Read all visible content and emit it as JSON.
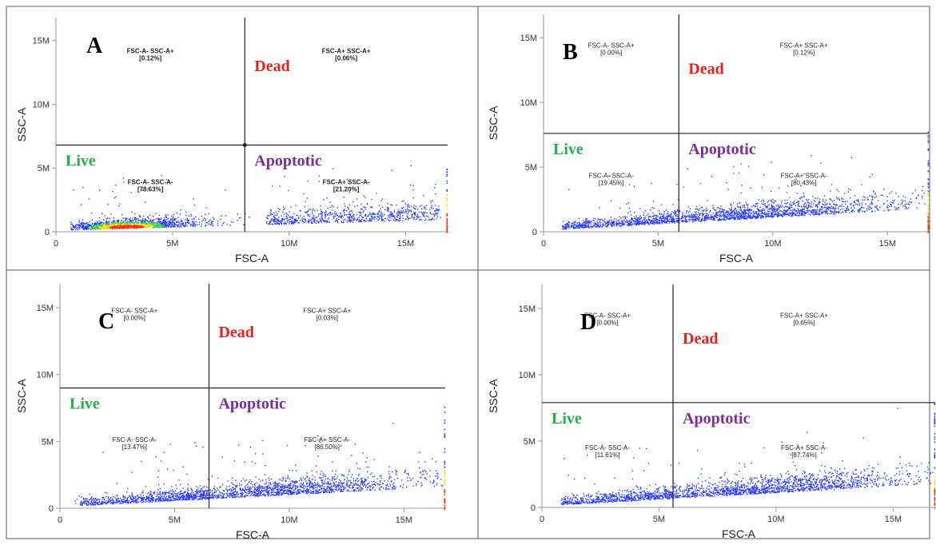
{
  "colors": {
    "live": "#22b04b",
    "dead": "#e8201a",
    "apoptotic": "#7b2d9e",
    "dot_low": "#2a3cff",
    "dot_mid": "#2ecc40",
    "dot_high": "#ffdd00",
    "dot_max": "#ff2a00"
  },
  "chart_data": [
    {
      "type": "scatter",
      "panel": "A",
      "xlabel": "FSC-A",
      "ylabel": "SSC-A",
      "xlim": [
        0,
        16.8
      ],
      "ylim": [
        0,
        16.8
      ],
      "x_unit": "M",
      "x_ticks": [
        {
          "value": 0,
          "label": "0"
        },
        {
          "value": 5,
          "label": "5M"
        },
        {
          "value": 10,
          "label": "10M"
        },
        {
          "value": 15,
          "label": "15M"
        }
      ],
      "y_ticks": [
        {
          "value": 0,
          "label": "0"
        },
        {
          "value": 5,
          "label": "5M"
        },
        {
          "value": 10,
          "label": "10M"
        },
        {
          "value": 15,
          "label": "15M"
        }
      ],
      "gate": {
        "x": 8.1,
        "y": 6.8
      },
      "quadrants": [
        {
          "position": "top-left",
          "label": "FSC-A- SSC-A+",
          "percent": "[0.12%]"
        },
        {
          "position": "top-right",
          "label": "FSC-A+ SSC-A+",
          "percent": "[0.06%]"
        },
        {
          "position": "bottom-left",
          "label": "FSC-A- SSC-A-",
          "percent": "[78.63%]"
        },
        {
          "position": "bottom-right",
          "label": "FSC-A+ SSC-A-",
          "percent": "[21.20%]"
        }
      ],
      "bold_quadrant_labels": true,
      "regions": {
        "live": "Live",
        "dead": "Dead",
        "apoptotic": "Apoptotic"
      },
      "density_center_x": 3.0,
      "density_center_y": 0.4,
      "slope": 0.05
    },
    {
      "type": "scatter",
      "panel": "B",
      "xlabel": "FSC-A",
      "ylabel": "SSC-A",
      "xlim": [
        0,
        16.8
      ],
      "ylim": [
        0,
        16.8
      ],
      "x_unit": "M",
      "x_ticks": [
        {
          "value": 0,
          "label": "0"
        },
        {
          "value": 5,
          "label": "5M"
        },
        {
          "value": 10,
          "label": "10M"
        },
        {
          "value": 15,
          "label": "15M"
        }
      ],
      "y_ticks": [
        {
          "value": 0,
          "label": "0"
        },
        {
          "value": 5,
          "label": "5M"
        },
        {
          "value": 10,
          "label": "10M"
        },
        {
          "value": 15,
          "label": "15M"
        }
      ],
      "gate": {
        "x": 5.9,
        "y": 7.6
      },
      "quadrants": [
        {
          "position": "top-left",
          "label": "FSC-A- SSC-A+",
          "percent": "[0.00%]"
        },
        {
          "position": "top-right",
          "label": "FSC-A+ SSC-A+",
          "percent": "[0.12%]"
        },
        {
          "position": "bottom-left",
          "label": "FSC-A- SSC-A-",
          "percent": "[19.45%]"
        },
        {
          "position": "bottom-right",
          "label": "FSC-A+ SSC-A-",
          "percent": "[80.43%]"
        }
      ],
      "bold_quadrant_labels": false,
      "regions": {
        "live": "Live",
        "dead": "Dead",
        "apoptotic": "Apoptotic"
      },
      "density_center_x": 9.5,
      "density_center_y": 0.6,
      "slope": 0.1
    },
    {
      "type": "scatter",
      "panel": "C",
      "xlabel": "FSC-A",
      "ylabel": "SSC-A",
      "xlim": [
        0,
        16.8
      ],
      "ylim": [
        0,
        16.8
      ],
      "x_unit": "M",
      "x_ticks": [
        {
          "value": 0,
          "label": "0"
        },
        {
          "value": 5,
          "label": "5M"
        },
        {
          "value": 10,
          "label": "10M"
        },
        {
          "value": 15,
          "label": "15M"
        }
      ],
      "y_ticks": [
        {
          "value": 0,
          "label": "0"
        },
        {
          "value": 5,
          "label": "5M"
        },
        {
          "value": 10,
          "label": "10M"
        },
        {
          "value": 15,
          "label": "15M"
        }
      ],
      "gate": {
        "x": 6.5,
        "y": 9.0
      },
      "quadrants": [
        {
          "position": "top-left",
          "label": "FSC-A- SSC-A+",
          "percent": "[0.00%]"
        },
        {
          "position": "top-right",
          "label": "FSC-A+ SSC-A+",
          "percent": "[0.03%]"
        },
        {
          "position": "bottom-left",
          "label": "FSC-A- SSC-A-",
          "percent": "[13.47%]"
        },
        {
          "position": "bottom-right",
          "label": "FSC-A+ SSC-A-",
          "percent": "[86.50%]"
        }
      ],
      "bold_quadrant_labels": false,
      "regions": {
        "live": "Live",
        "dead": "Dead",
        "apoptotic": "Apoptotic"
      },
      "density_center_x": 9.8,
      "density_center_y": 0.6,
      "slope": 0.09
    },
    {
      "type": "scatter",
      "panel": "D",
      "xlabel": "FSC-A",
      "ylabel": "SSC-A",
      "xlim": [
        0,
        16.8
      ],
      "ylim": [
        0,
        16.8
      ],
      "x_unit": "M",
      "x_ticks": [
        {
          "value": 0,
          "label": "0"
        },
        {
          "value": 5,
          "label": "5M"
        },
        {
          "value": 10,
          "label": "10M"
        },
        {
          "value": 15,
          "label": "15M"
        }
      ],
      "y_ticks": [
        {
          "value": 0,
          "label": "0"
        },
        {
          "value": 5,
          "label": "5M"
        },
        {
          "value": 10,
          "label": "10M"
        },
        {
          "value": 15,
          "label": "15M"
        }
      ],
      "gate": {
        "x": 5.6,
        "y": 7.9
      },
      "quadrants": [
        {
          "position": "top-left",
          "label": "FSC-A- SSC-A+",
          "percent": "[0.00%]"
        },
        {
          "position": "top-right",
          "label": "FSC-A+ SSC-A+",
          "percent": "[0.65%]"
        },
        {
          "position": "bottom-left",
          "label": "FSC-A- SSC-A-",
          "percent": "[11.61%]"
        },
        {
          "position": "bottom-right",
          "label": "FSC-A+ SSC-A-",
          "percent": "[87.74%]"
        }
      ],
      "bold_quadrant_labels": false,
      "regions": {
        "live": "Live",
        "dead": "Dead",
        "apoptotic": "Apoptotic"
      },
      "density_center_x": 10.0,
      "density_center_y": 0.7,
      "slope": 0.1
    }
  ]
}
